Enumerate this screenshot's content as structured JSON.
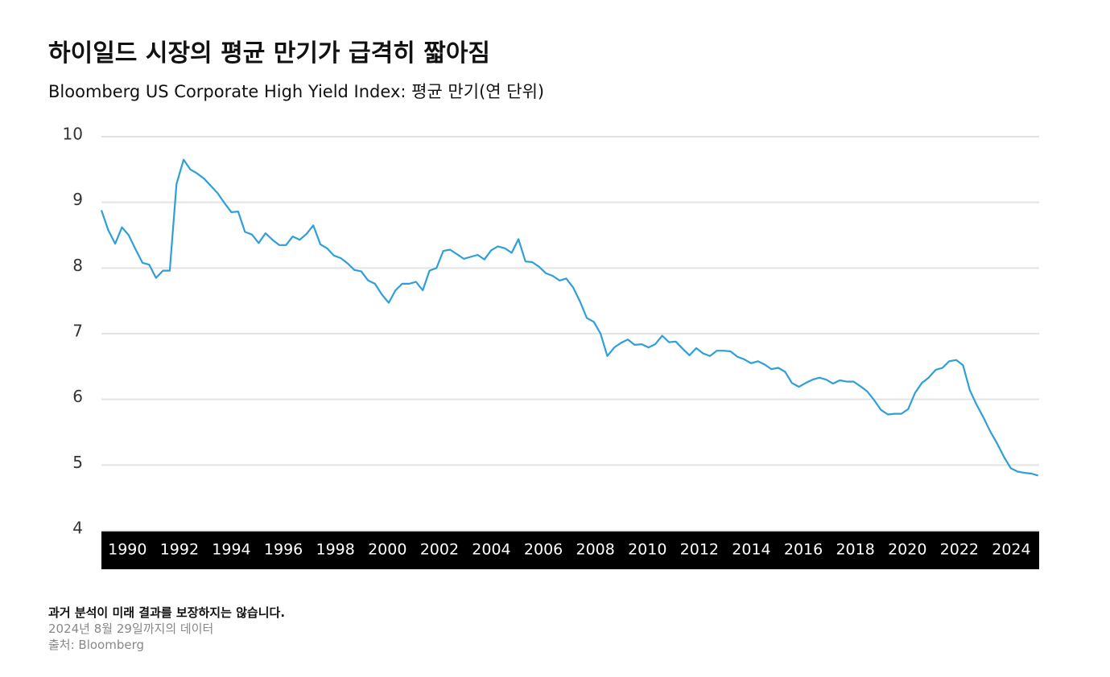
{
  "header": {
    "title": "하이일드 시장의 평균 만기가 급격히 짧아짐",
    "subtitle": "Bloomberg US Corporate High Yield Index: 평균 만기(연 단위)"
  },
  "chart_data": {
    "type": "line",
    "color": "#2e9fd8",
    "grid": true,
    "xlim": [
      1989,
      2025.07
    ],
    "ylim": [
      4,
      10
    ],
    "yticks": [
      4,
      5,
      6,
      7,
      8,
      9,
      10
    ],
    "xticks": [
      1990,
      1992,
      1994,
      1996,
      1998,
      2000,
      2002,
      2004,
      2006,
      2008,
      2010,
      2012,
      2014,
      2016,
      2018,
      2020,
      2022,
      2024
    ],
    "x": [
      1989.0,
      1989.26,
      1989.53,
      1989.79,
      1990.05,
      1990.32,
      1990.58,
      1990.84,
      1991.1,
      1991.37,
      1991.63,
      1991.89,
      1992.16,
      1992.42,
      1992.68,
      1992.95,
      1993.21,
      1993.47,
      1993.73,
      1994.0,
      1994.26,
      1994.52,
      1994.79,
      1995.05,
      1995.31,
      1995.58,
      1995.84,
      1996.1,
      1996.36,
      1996.63,
      1996.89,
      1997.15,
      1997.42,
      1997.68,
      1997.94,
      1998.21,
      1998.47,
      1998.73,
      1998.99,
      1999.26,
      1999.52,
      1999.78,
      2000.05,
      2000.31,
      2000.57,
      2000.84,
      2001.1,
      2001.36,
      2001.62,
      2001.89,
      2002.15,
      2002.41,
      2002.68,
      2002.94,
      2003.2,
      2003.47,
      2003.73,
      2003.99,
      2004.25,
      2004.52,
      2004.78,
      2005.04,
      2005.31,
      2005.57,
      2005.83,
      2006.1,
      2006.36,
      2006.62,
      2006.88,
      2007.15,
      2007.41,
      2007.67,
      2007.94,
      2008.2,
      2008.46,
      2008.73,
      2008.99,
      2009.25,
      2009.51,
      2009.78,
      2010.04,
      2010.3,
      2010.57,
      2010.83,
      2011.09,
      2011.36,
      2011.62,
      2011.88,
      2012.14,
      2012.41,
      2012.67,
      2012.93,
      2013.2,
      2013.46,
      2013.72,
      2013.99,
      2014.25,
      2014.51,
      2014.77,
      2015.04,
      2015.3,
      2015.56,
      2015.83,
      2016.09,
      2016.35,
      2016.62,
      2016.88,
      2017.14,
      2017.4,
      2017.67,
      2017.93,
      2018.19,
      2018.46,
      2018.72,
      2018.98,
      2019.25,
      2019.51,
      2019.77,
      2020.03,
      2020.3,
      2020.56,
      2020.82,
      2021.09,
      2021.35,
      2021.61,
      2021.88,
      2022.14,
      2022.4,
      2022.66,
      2022.93,
      2023.19,
      2023.45,
      2023.72,
      2023.98,
      2024.24,
      2024.51,
      2024.77,
      2025.03
    ],
    "values": [
      8.88,
      8.58,
      8.37,
      8.62,
      8.5,
      8.28,
      8.08,
      8.05,
      7.85,
      7.96,
      7.96,
      9.28,
      9.65,
      9.5,
      9.44,
      9.36,
      9.25,
      9.14,
      8.99,
      8.85,
      8.86,
      8.55,
      8.51,
      8.38,
      8.53,
      8.43,
      8.35,
      8.35,
      8.48,
      8.43,
      8.52,
      8.65,
      8.36,
      8.3,
      8.19,
      8.15,
      8.07,
      7.97,
      7.95,
      7.81,
      7.76,
      7.6,
      7.47,
      7.66,
      7.76,
      7.76,
      7.79,
      7.66,
      7.96,
      8.0,
      8.26,
      8.28,
      8.21,
      8.14,
      8.17,
      8.2,
      8.13,
      8.27,
      8.33,
      8.3,
      8.23,
      8.44,
      8.1,
      8.09,
      8.02,
      7.92,
      7.88,
      7.81,
      7.84,
      7.7,
      7.49,
      7.24,
      7.18,
      7.0,
      6.66,
      6.79,
      6.86,
      6.91,
      6.83,
      6.84,
      6.79,
      6.84,
      6.97,
      6.87,
      6.88,
      6.77,
      6.67,
      6.78,
      6.7,
      6.66,
      6.74,
      6.74,
      6.73,
      6.65,
      6.61,
      6.55,
      6.58,
      6.53,
      6.46,
      6.48,
      6.42,
      6.25,
      6.19,
      6.25,
      6.3,
      6.33,
      6.3,
      6.24,
      6.29,
      6.27,
      6.27,
      6.2,
      6.12,
      5.99,
      5.84,
      5.77,
      5.78,
      5.78,
      5.85,
      6.1,
      6.25,
      6.33,
      6.45,
      6.48,
      6.58,
      6.6,
      6.52,
      6.14,
      5.92,
      5.72,
      5.51,
      5.33,
      5.12,
      4.95,
      4.9,
      4.88,
      4.87,
      4.84
    ]
  },
  "footer": {
    "disclaimer": "과거 분석이 미래 결과를 보장하지는 않습니다.",
    "date_note": "2024년 8월 29일까지의 데이터",
    "source": "출처: Bloomberg"
  }
}
